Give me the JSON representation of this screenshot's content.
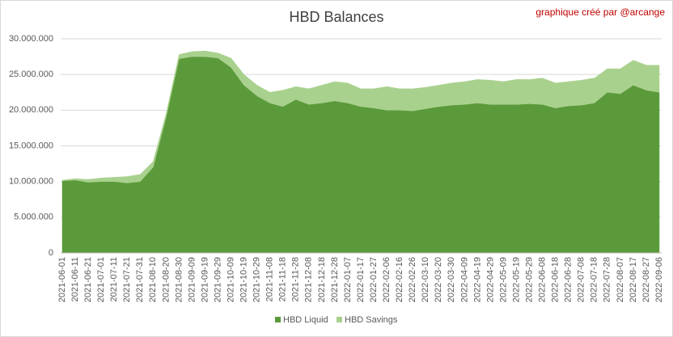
{
  "chart_data": {
    "type": "stacked-area",
    "title": "HBD Balances",
    "annotation": "graphique créé par @arcange",
    "categories": [
      "2021-06-01",
      "2021-06-11",
      "2021-06-21",
      "2021-07-01",
      "2021-07-11",
      "2021-07-21",
      "2021-07-31",
      "2021-08-10",
      "2021-08-20",
      "2021-08-30",
      "2021-09-09",
      "2021-09-19",
      "2021-09-29",
      "2021-10-09",
      "2021-10-19",
      "2021-10-29",
      "2021-11-08",
      "2021-11-18",
      "2021-11-28",
      "2021-12-08",
      "2021-12-18",
      "2021-12-28",
      "2022-01-07",
      "2022-01-17",
      "2022-01-27",
      "2022-02-06",
      "2022-02-16",
      "2022-02-26",
      "2022-03-10",
      "2022-03-20",
      "2022-03-30",
      "2022-04-09",
      "2022-04-19",
      "2022-04-29",
      "2022-05-09",
      "2022-05-19",
      "2022-05-29",
      "2022-06-08",
      "2022-06-18",
      "2022-06-28",
      "2022-07-08",
      "2022-07-18",
      "2022-07-28",
      "2022-08-07",
      "2022-08-17",
      "2022-08-27",
      "2022-09-06"
    ],
    "series": [
      {
        "name": "HBD Liquid",
        "color": "#5b9a3a",
        "values": [
          10100000,
          10200000,
          9900000,
          10000000,
          10000000,
          9800000,
          10000000,
          12000000,
          19000000,
          27200000,
          27500000,
          27500000,
          27300000,
          26000000,
          23500000,
          22000000,
          21000000,
          20500000,
          21500000,
          20800000,
          21000000,
          21300000,
          21000000,
          20500000,
          20300000,
          20000000,
          20000000,
          19900000,
          20200000,
          20500000,
          20700000,
          20800000,
          21000000,
          20800000,
          20800000,
          20800000,
          20900000,
          20800000,
          20300000,
          20600000,
          20700000,
          21000000,
          22500000,
          22300000,
          23500000,
          22800000,
          22500000
        ]
      },
      {
        "name": "HBD Savings",
        "color": "#a9d18e",
        "values": [
          100000,
          200000,
          400000,
          500000,
          600000,
          900000,
          1000000,
          800000,
          500000,
          600000,
          700000,
          800000,
          700000,
          1300000,
          1500000,
          1500000,
          1500000,
          2300000,
          1800000,
          2200000,
          2500000,
          2700000,
          2800000,
          2500000,
          2700000,
          3300000,
          3000000,
          3100000,
          3000000,
          3000000,
          3100000,
          3200000,
          3300000,
          3400000,
          3200000,
          3500000,
          3400000,
          3700000,
          3500000,
          3400000,
          3500000,
          3500000,
          3300000,
          3500000,
          3500000,
          3500000,
          3800000
        ]
      }
    ],
    "ylim": [
      0,
      30000000
    ],
    "yticks": [
      0,
      {
        "value": 5000000,
        "label": "5.000.000"
      },
      {
        "value": 10000000,
        "label": "10.000.000"
      },
      {
        "value": 15000000,
        "label": "15.000.000"
      },
      {
        "value": 20000000,
        "label": "20.000.000"
      },
      {
        "value": 25000000,
        "label": "25.000.000"
      },
      {
        "value": 30000000,
        "label": "30.000.000"
      }
    ],
    "grid": true,
    "legend": "bottom"
  }
}
